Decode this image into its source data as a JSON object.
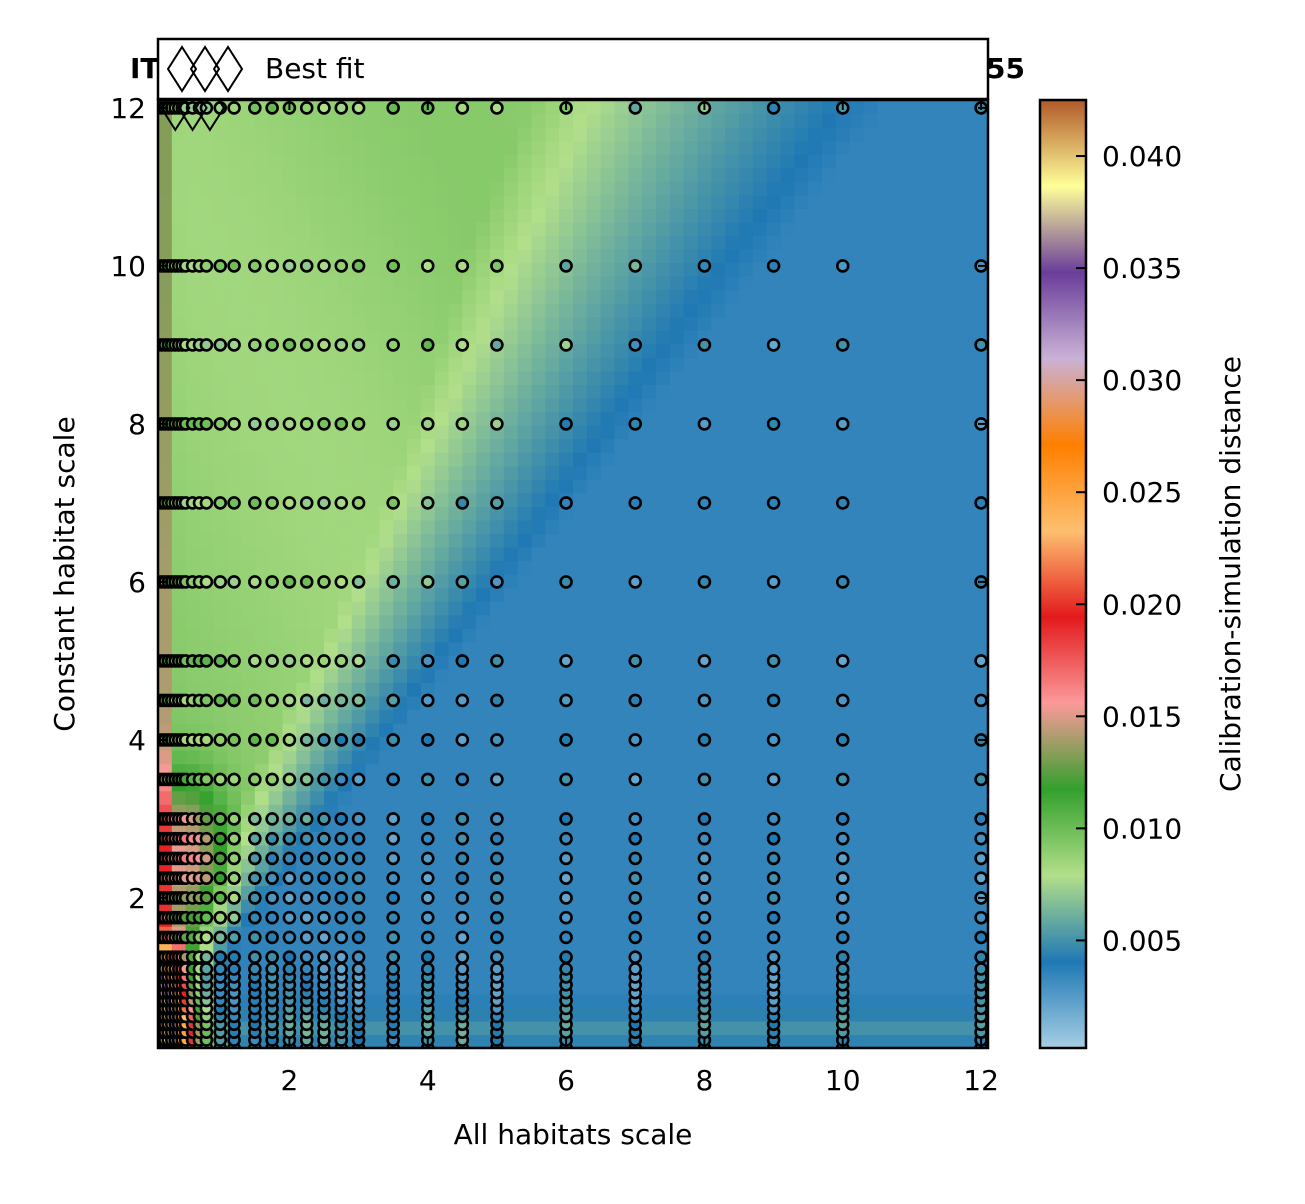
{
  "chart_data": {
    "type": "heatmap",
    "title_left": "IT",
    "title_right": "55",
    "xlabel": "All habitats scale",
    "ylabel": "Constant habitat scale",
    "xlim": [
      0.1,
      12.1
    ],
    "ylim": [
      0.1,
      12.1
    ],
    "xticks": [
      2,
      4,
      6,
      8,
      10,
      12
    ],
    "yticks": [
      2,
      4,
      6,
      8,
      10,
      12
    ],
    "legend": {
      "placement": "top",
      "entries": [
        "Best fit"
      ]
    },
    "colorbar": {
      "label": "Calibration-simulation distance",
      "range": [
        0.0002,
        0.0425
      ],
      "ticks": [
        0.005,
        0.01,
        0.015,
        0.02,
        0.025,
        0.03,
        0.035,
        0.04
      ],
      "tick_labels": [
        "0.005",
        "0.010",
        "0.015",
        "0.020",
        "0.025",
        "0.030",
        "0.035",
        "0.040"
      ],
      "colors": [
        "#a6cee3",
        "#1f78b4",
        "#b2df8a",
        "#33a02c",
        "#fb9a99",
        "#e31a1c",
        "#fdbf6f",
        "#ff7f00",
        "#cab2d6",
        "#6a3d9a",
        "#ffff99",
        "#b15928"
      ]
    },
    "x_samples": [
      0.1,
      0.15,
      0.2,
      0.25,
      0.3,
      0.35,
      0.4,
      0.45,
      0.5,
      0.6,
      0.7,
      0.8,
      1.0,
      1.2,
      1.5,
      1.75,
      2.0,
      2.25,
      2.5,
      2.75,
      3.0,
      3.5,
      4.0,
      4.5,
      5.0,
      6.0,
      7.0,
      8.0,
      9.0,
      10.0,
      12.0
    ],
    "y_samples": [
      0.1,
      0.2,
      0.3,
      0.4,
      0.5,
      0.6,
      0.7,
      0.8,
      0.9,
      1.0,
      1.1,
      1.25,
      1.5,
      1.75,
      2.0,
      2.25,
      2.5,
      2.75,
      3.0,
      3.5,
      4.0,
      4.5,
      5.0,
      6.0,
      7.0,
      8.0,
      9.0,
      10.0,
      12.0
    ],
    "best_fit": [
      [
        0.35,
        12.0
      ],
      [
        0.6,
        12.0
      ],
      [
        0.85,
        12.0
      ]
    ]
  }
}
